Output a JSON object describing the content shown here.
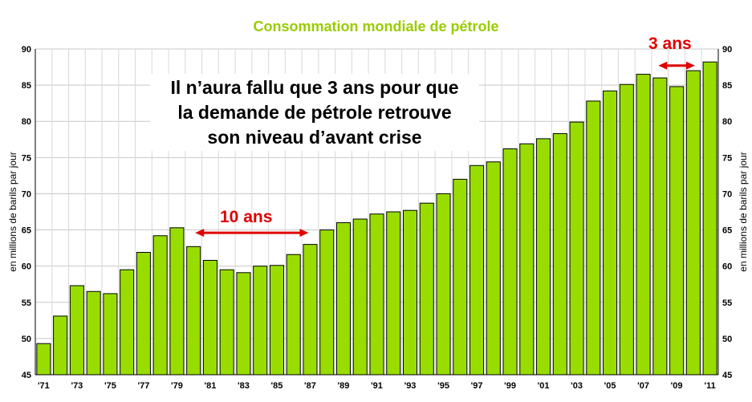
{
  "chart_data": {
    "type": "bar",
    "title": "Consommation mondiale de pétrole",
    "ylabel": "en millions de barils par jour",
    "ylim": [
      45,
      90
    ],
    "yticks": [
      45,
      50,
      55,
      60,
      65,
      70,
      75,
      80,
      85,
      90
    ],
    "grid": true,
    "bar_color": "#99dd00",
    "categories": [
      "'71",
      "'72",
      "'73",
      "'74",
      "'75",
      "'76",
      "'77",
      "'78",
      "'79",
      "'80",
      "'81",
      "'82",
      "'83",
      "'84",
      "'85",
      "'86",
      "'87",
      "'88",
      "'89",
      "'90",
      "'91",
      "'92",
      "'93",
      "'94",
      "'95",
      "'96",
      "'97",
      "'98",
      "'99",
      "'00",
      "'01",
      "'02",
      "'03",
      "'04",
      "'05",
      "'06",
      "'07",
      "'08",
      "'09",
      "'10",
      "'11"
    ],
    "xtick_labels": [
      "'71",
      "'73",
      "'75",
      "'77",
      "'79",
      "'81",
      "'83",
      "'85",
      "'87",
      "'89",
      "'91",
      "'93",
      "'95",
      "'97",
      "'99",
      "'01",
      "'03",
      "'05",
      "'07",
      "'09",
      "'11"
    ],
    "values": [
      49.3,
      53.1,
      57.3,
      56.5,
      56.2,
      59.5,
      61.9,
      64.2,
      65.3,
      62.7,
      60.8,
      59.5,
      59.1,
      60.0,
      60.1,
      61.6,
      63.0,
      65.0,
      66.0,
      66.5,
      67.2,
      67.5,
      67.7,
      68.7,
      70.0,
      72.0,
      73.9,
      74.4,
      76.2,
      76.9,
      77.6,
      78.3,
      79.9,
      82.8,
      84.2,
      85.1,
      86.5,
      86.0,
      84.8,
      87.0,
      88.2
    ],
    "annotations": {
      "callout": [
        "Il n’aura fallu que 3 ans pour que",
        "la demande de pétrole retrouve",
        "son niveau d’avant crise"
      ],
      "arrow_1": {
        "label": "10 ans",
        "from": "'80",
        "to": "'87",
        "color": "#e00000"
      },
      "arrow_2": {
        "label": "3 ans",
        "from": "'08",
        "to": "'10",
        "color": "#e00000"
      }
    }
  }
}
